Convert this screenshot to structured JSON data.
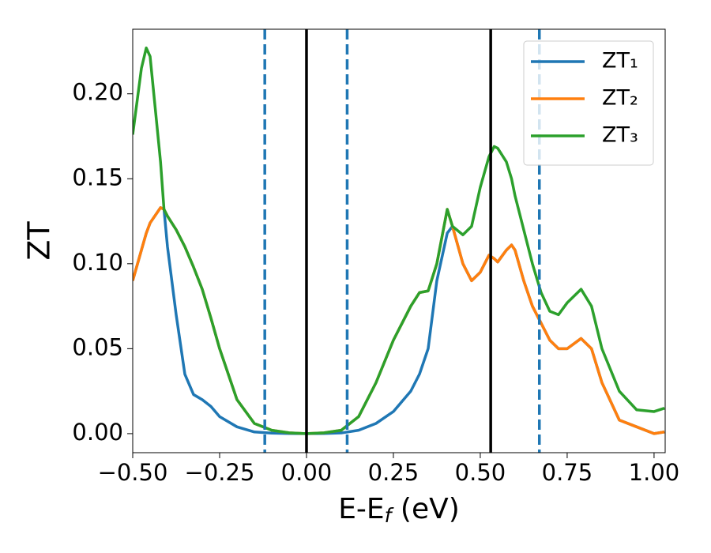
{
  "chart_data": {
    "type": "line",
    "xlabel": [
      "E-E",
      "f",
      " (eV)"
    ],
    "ylabel": "ZT",
    "x": [
      -0.5,
      -0.475,
      -0.461,
      -0.45,
      -0.42,
      -0.41,
      -0.4,
      -0.375,
      -0.35,
      -0.325,
      -0.3,
      -0.275,
      -0.25,
      -0.2,
      -0.15,
      -0.1,
      -0.05,
      0,
      0.05,
      0.1,
      0.15,
      0.2,
      0.25,
      0.3,
      0.325,
      0.35,
      0.375,
      0.405,
      0.42,
      0.45,
      0.475,
      0.5,
      0.525,
      0.54,
      0.55,
      0.575,
      0.59,
      0.6,
      0.625,
      0.65,
      0.675,
      0.7,
      0.725,
      0.75,
      0.79,
      0.82,
      0.85,
      0.9,
      0.95,
      1.0,
      1.03
    ],
    "series": [
      {
        "name": "ZT₁",
        "color": "#1f77b4",
        "values": [
          0.09,
          0.108,
          0.118,
          0.124,
          0.133,
          0.132,
          0.11,
          0.07,
          0.035,
          0.023,
          0.02,
          0.016,
          0.01,
          0.004,
          0.001,
          0.0003,
          0.0001,
          0,
          0.0001,
          0.0004,
          0.002,
          0.006,
          0.013,
          0.025,
          0.035,
          0.05,
          0.09,
          0.118,
          0.122,
          0.1,
          0.09,
          0.095,
          0.105,
          0.103,
          0.101,
          0.108,
          0.111,
          0.108,
          0.09,
          0.075,
          0.065,
          0.055,
          0.05,
          0.05,
          0.056,
          0.05,
          0.03,
          0.008,
          0.004,
          0.0,
          0.001
        ]
      },
      {
        "name": "ZT₂",
        "color": "#ff7f0e",
        "values": [
          0.09,
          0.108,
          0.118,
          0.124,
          0.133,
          0.132,
          0.128,
          0.12,
          0.11,
          0.098,
          0.085,
          0.068,
          0.05,
          0.02,
          0.006,
          0.002,
          0.0005,
          0,
          0.0005,
          0.002,
          0.01,
          0.03,
          0.055,
          0.075,
          0.083,
          0.084,
          0.1,
          0.132,
          0.122,
          0.1,
          0.09,
          0.095,
          0.105,
          0.103,
          0.101,
          0.108,
          0.111,
          0.108,
          0.09,
          0.075,
          0.065,
          0.055,
          0.05,
          0.05,
          0.056,
          0.05,
          0.03,
          0.008,
          0.004,
          0.0,
          0.001
        ]
      },
      {
        "name": "ZT₃",
        "color": "#2ca02c",
        "values": [
          0.176,
          0.215,
          0.227,
          0.222,
          0.16,
          0.132,
          0.128,
          0.12,
          0.11,
          0.098,
          0.085,
          0.068,
          0.05,
          0.02,
          0.006,
          0.002,
          0.0005,
          0,
          0.0005,
          0.002,
          0.01,
          0.03,
          0.055,
          0.075,
          0.083,
          0.084,
          0.1,
          0.132,
          0.122,
          0.117,
          0.122,
          0.145,
          0.163,
          0.169,
          0.168,
          0.16,
          0.15,
          0.14,
          0.12,
          0.1,
          0.083,
          0.072,
          0.07,
          0.077,
          0.085,
          0.075,
          0.05,
          0.025,
          0.014,
          0.013,
          0.015
        ]
      }
    ],
    "vlines": [
      {
        "x": 0.0,
        "color": "#000000",
        "style": "solid"
      },
      {
        "x": 0.53,
        "color": "#000000",
        "style": "solid"
      },
      {
        "x": -0.12,
        "color": "#1f77b4",
        "style": "dashed"
      },
      {
        "x": 0.117,
        "color": "#1f77b4",
        "style": "dashed"
      },
      {
        "x": 0.67,
        "color": "#1f77b4",
        "style": "dashed"
      }
    ],
    "xlim": [
      -0.5,
      1.032
    ],
    "ylim": [
      -0.0112,
      0.238
    ],
    "xticks": [
      {
        "value": -0.5,
        "label": "−0.50"
      },
      {
        "value": -0.25,
        "label": "−0.25"
      },
      {
        "value": 0,
        "label": "0.00"
      },
      0.25,
      {
        "value": 0.5,
        "label": "0.50"
      },
      0.75,
      {
        "value": 1.0,
        "label": "1.00"
      }
    ],
    "yticks": [
      {
        "value": 0,
        "label": "0.00"
      },
      0.05,
      {
        "value": 0.1,
        "label": "0.10"
      },
      0.15,
      {
        "value": 0.2,
        "label": "0.20"
      }
    ],
    "grid": false,
    "legend": "upper right"
  }
}
